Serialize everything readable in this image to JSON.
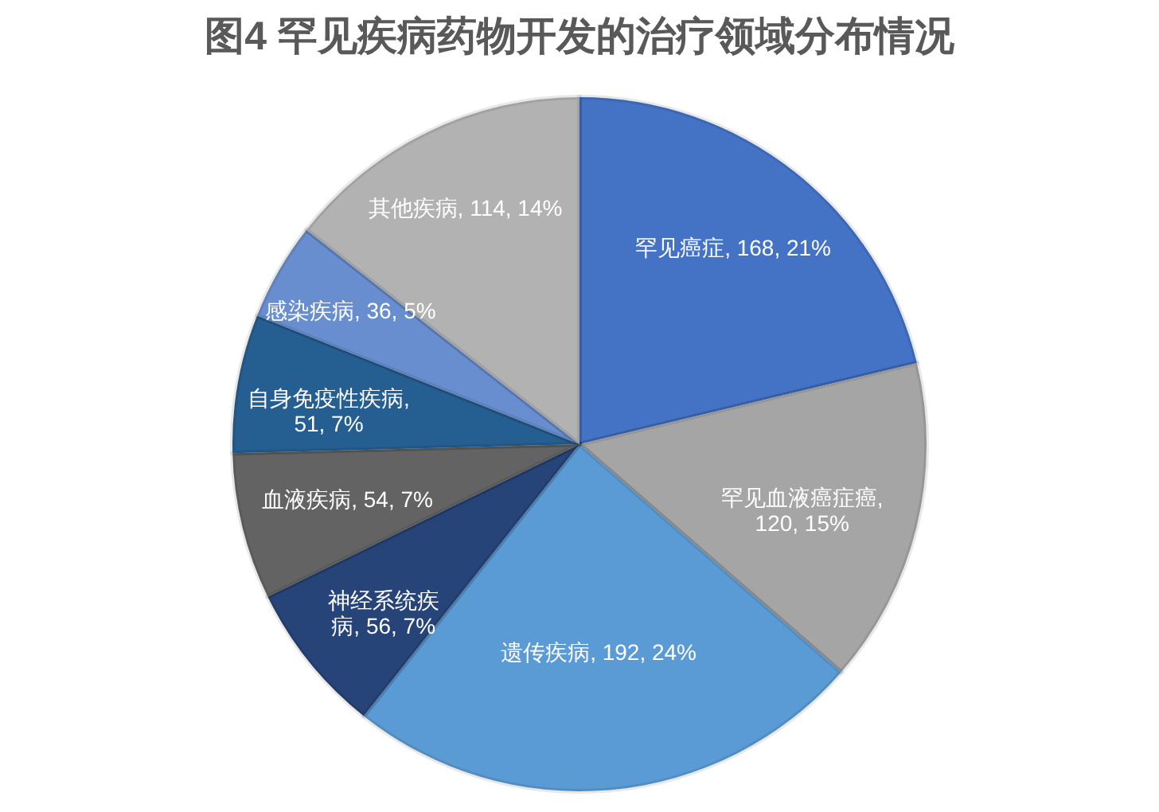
{
  "chart_data": {
    "type": "pie",
    "title": "图4  罕见疾病药物开发的治疗领域分布情况",
    "categories": [
      "罕见癌症",
      "罕见血液癌症癌",
      "遗传疾病",
      "神经系统疾病",
      "血液疾病",
      "自身免疫性疾病",
      "感染疾病",
      "其他疾病"
    ],
    "values": [
      168,
      120,
      192,
      56,
      54,
      51,
      36,
      114
    ],
    "value_labels": [
      ", 168, 21%",
      ", 120, 15%",
      ", 192, 24%",
      ", 56, 7%",
      ", 54, 7%",
      ", 51, 7%",
      ", 36, 5%",
      ", 114, 14%"
    ],
    "colors": [
      "#4472c4",
      "#a5a5a5",
      "#5b9bd5",
      "#264478",
      "#636363",
      "#255e91",
      "#698ed0",
      "#b2b2b2"
    ],
    "legend": false
  }
}
